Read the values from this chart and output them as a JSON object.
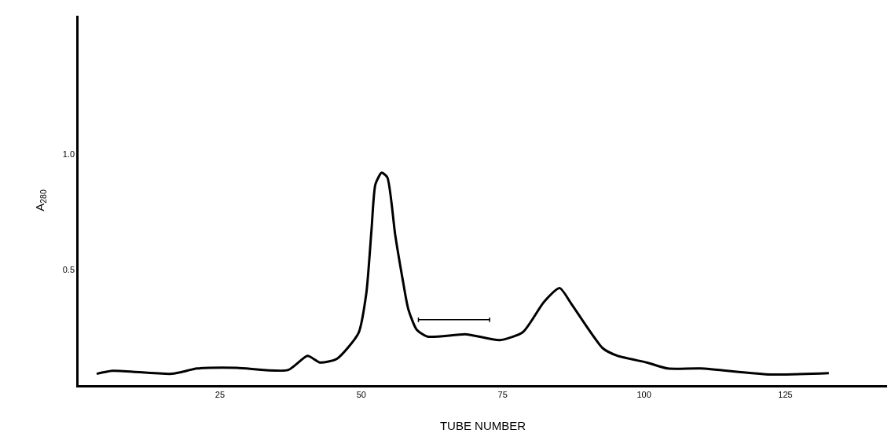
{
  "chart_data": {
    "type": "line",
    "xlabel": "TUBE NUMBER",
    "ylabel": "A$_{280}$",
    "xlim": [
      0,
      143
    ],
    "ylim": [
      0,
      1.6
    ],
    "xticks": [
      25,
      50,
      75,
      100,
      125
    ],
    "yticks": [
      0.5,
      {
        "value": 1,
        "label": "1.0"
      }
    ],
    "line_style": "solid",
    "marker": "none",
    "series": [
      {
        "color": "#000000",
        "x": [
          3.2,
          6,
          16.5,
          21,
          27.9,
          37,
          40.5,
          42.7,
          45.7,
          49.5,
          50.9,
          51.8,
          52.5,
          53.6,
          54.6,
          56,
          57.3,
          58.3,
          59.8,
          61.7,
          68.6,
          74.5,
          78.6,
          82.3,
          85.1,
          87.2,
          92.7,
          95.3,
          100.5,
          104.2,
          110,
          122.4,
          132.7
        ],
        "values": [
          0.049,
          0.062,
          0.049,
          0.072,
          0.075,
          0.065,
          0.127,
          0.098,
          0.114,
          0.225,
          0.4,
          0.67,
          0.87,
          0.92,
          0.9,
          0.65,
          0.46,
          0.33,
          0.24,
          0.21,
          0.22,
          0.195,
          0.23,
          0.36,
          0.42,
          0.35,
          0.16,
          0.127,
          0.098,
          0.072,
          0.072,
          0.046,
          0.052
        ]
      },
      {
        "type": "line",
        "color": "#000000",
        "x": [
          60.1,
          72.7
        ],
        "values": [
          0.283,
          0.283
        ],
        "errors": [
          0.01,
          0.01
        ]
      }
    ]
  }
}
